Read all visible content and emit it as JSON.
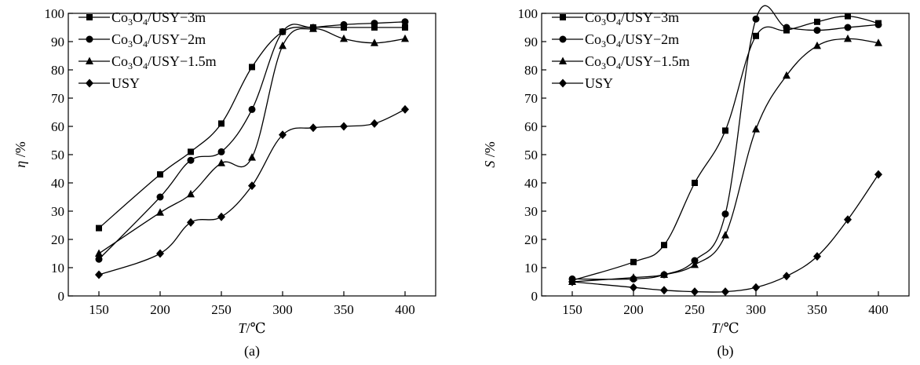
{
  "chart_data": [
    {
      "type": "line",
      "panel_label": "(a)",
      "xlabel_var": "T",
      "xlabel_unit": "/℃",
      "ylabel_var": "η",
      "ylabel_unit": " /%",
      "xlim": [
        125,
        425
      ],
      "ylim": [
        0,
        100
      ],
      "xticks": [
        150,
        200,
        250,
        300,
        350,
        400
      ],
      "yticks": [
        0,
        10,
        20,
        30,
        40,
        50,
        60,
        70,
        80,
        90,
        100
      ],
      "legend_position": "top-left",
      "series": [
        {
          "base": "Co",
          "sub1": "3",
          "mid": "O",
          "sub2": "4",
          "tail": "/USY−3m",
          "marker": "square",
          "x": [
            150,
            200,
            225,
            250,
            275,
            300,
            325,
            350,
            375,
            400
          ],
          "y": [
            24,
            43,
            51,
            61,
            81,
            93.5,
            95,
            95,
            95,
            95
          ]
        },
        {
          "base": "Co",
          "sub1": "3",
          "mid": "O",
          "sub2": "4",
          "tail": "/USY−2m",
          "marker": "circle",
          "x": [
            150,
            200,
            225,
            250,
            275,
            300,
            325,
            350,
            375,
            400
          ],
          "y": [
            13,
            35,
            48,
            51,
            66,
            93.5,
            95,
            96,
            96.5,
            97
          ]
        },
        {
          "base": "Co",
          "sub1": "3",
          "mid": "O",
          "sub2": "4",
          "tail": "/USY−1.5m",
          "marker": "triangle",
          "x": [
            150,
            200,
            225,
            250,
            275,
            300,
            325,
            350,
            375,
            400
          ],
          "y": [
            15,
            29.5,
            36,
            47,
            49,
            88.5,
            94.5,
            91,
            89.5,
            91
          ]
        },
        {
          "base": "USY",
          "sub1": "",
          "mid": "",
          "sub2": "",
          "tail": "",
          "marker": "diamond",
          "x": [
            150,
            200,
            225,
            250,
            275,
            300,
            325,
            350,
            375,
            400
          ],
          "y": [
            7.5,
            15,
            26,
            28,
            39,
            57,
            59.5,
            60,
            61,
            66
          ]
        }
      ]
    },
    {
      "type": "line",
      "panel_label": "(b)",
      "xlabel_var": "T",
      "xlabel_unit": "/℃",
      "ylabel_var": "S",
      "ylabel_unit": " /%",
      "xlim": [
        125,
        425
      ],
      "ylim": [
        0,
        100
      ],
      "xticks": [
        150,
        200,
        250,
        300,
        350,
        400
      ],
      "yticks": [
        0,
        10,
        20,
        30,
        40,
        50,
        60,
        70,
        80,
        90,
        100
      ],
      "legend_position": "top-left",
      "series": [
        {
          "base": "Co",
          "sub1": "3",
          "mid": "O",
          "sub2": "4",
          "tail": "/USY−3m",
          "marker": "square",
          "x": [
            150,
            200,
            225,
            250,
            275,
            300,
            325,
            350,
            375,
            400
          ],
          "y": [
            5.5,
            12,
            18,
            40,
            58.5,
            92,
            94,
            97,
            99,
            96.5
          ]
        },
        {
          "base": "Co",
          "sub1": "3",
          "mid": "O",
          "sub2": "4",
          "tail": "/USY−2m",
          "marker": "circle",
          "x": [
            150,
            200,
            225,
            250,
            275,
            300,
            325,
            350,
            375,
            400
          ],
          "y": [
            6,
            6,
            7.5,
            12.5,
            29,
            98,
            95,
            94,
            95,
            96
          ]
        },
        {
          "base": "Co",
          "sub1": "3",
          "mid": "O",
          "sub2": "4",
          "tail": "/USY−1.5m",
          "marker": "triangle",
          "x": [
            150,
            200,
            225,
            250,
            275,
            300,
            325,
            350,
            375,
            400
          ],
          "y": [
            5,
            6.5,
            7.5,
            11,
            21.5,
            59,
            78,
            88.5,
            91,
            89.5
          ]
        },
        {
          "base": "USY",
          "sub1": "",
          "mid": "",
          "sub2": "",
          "tail": "",
          "marker": "diamond",
          "x": [
            150,
            200,
            225,
            250,
            275,
            300,
            325,
            350,
            375,
            400
          ],
          "y": [
            5,
            3,
            2,
            1.5,
            1.5,
            3,
            7,
            14,
            27,
            43
          ]
        }
      ]
    }
  ]
}
